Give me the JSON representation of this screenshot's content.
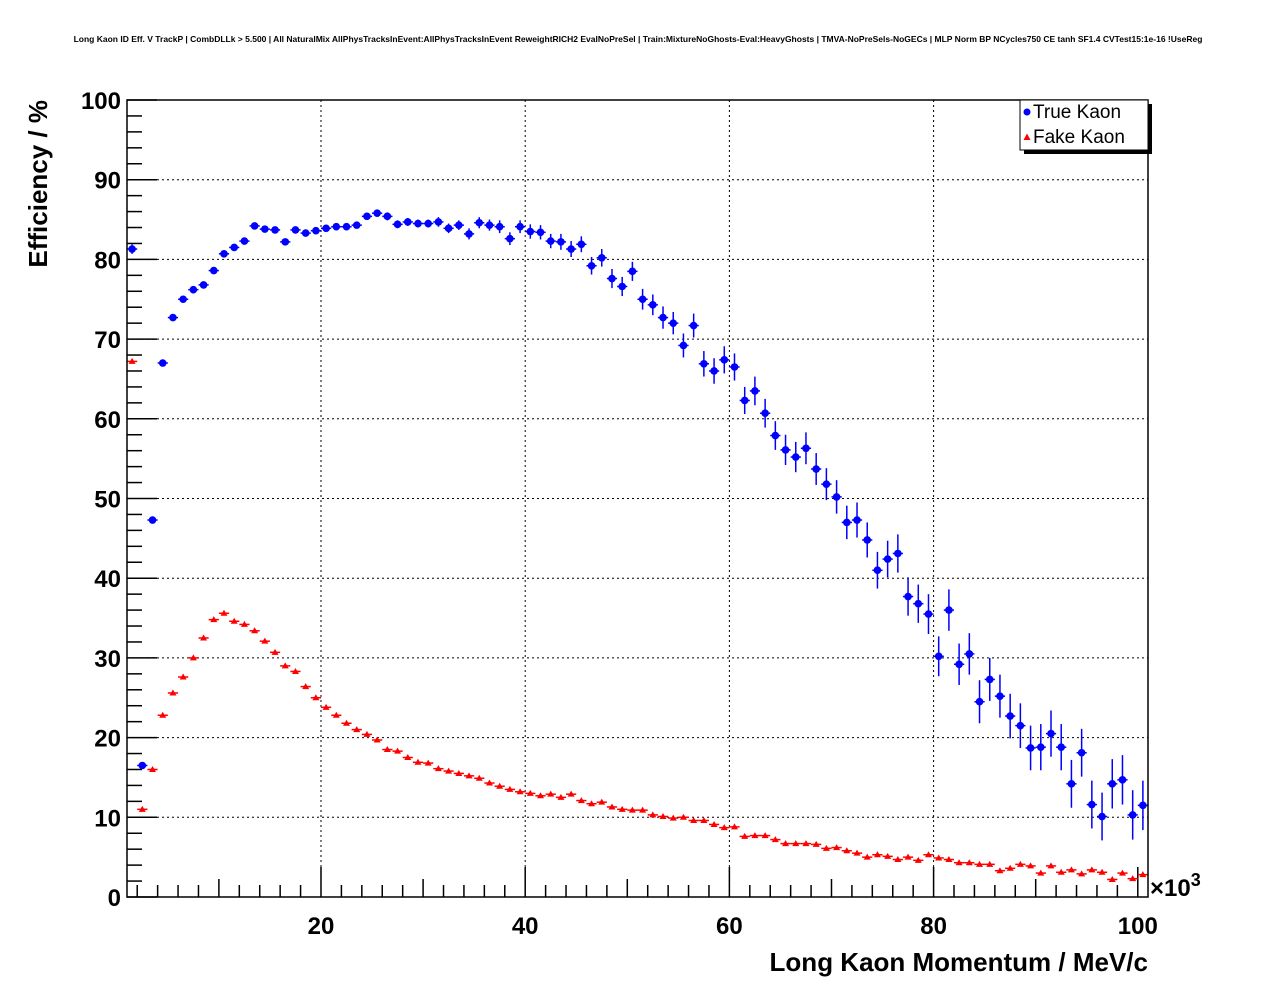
{
  "chart_data": {
    "type": "scatter",
    "title": "Long Kaon ID Eff. V TrackP | CombDLLk > 5.500 | All NaturalMix AllPhysTracksInEvent:AllPhysTracksInEvent ReweightRICH2 EvalNoPreSel | Train:MixtureNoGhosts-Eval:HeavyGhosts | TMVA-NoPreSels-NoGECs | MLP Norm BP NCycles750 CE tanh SF1.4 CVTest15:1e-16 !UseReg",
    "xlabel": "Long Kaon Momentum / MeV/c",
    "ylabel": "Efficiency / %",
    "x_multiplier": "×10",
    "x_multiplier_exp": "3",
    "xlim": [
      1,
      101
    ],
    "ylim": [
      0,
      100
    ],
    "xticks": [
      "20",
      "40",
      "60",
      "80",
      "100"
    ],
    "yticks": [
      "0",
      "10",
      "20",
      "30",
      "40",
      "50",
      "60",
      "70",
      "80",
      "90",
      "100"
    ],
    "grid": true,
    "legend_position": "top-right",
    "x_start": 1.5,
    "x_step": 1,
    "series": [
      {
        "name": "True Kaon",
        "color": "#0000ff",
        "marker": "circle",
        "values": [
          81.3,
          16.5,
          47.3,
          67,
          72.7,
          75,
          76.2,
          76.8,
          78.6,
          80.7,
          81.5,
          82.3,
          84.2,
          83.8,
          83.7,
          82.2,
          83.7,
          83.3,
          83.6,
          83.9,
          84.1,
          84.1,
          84.3,
          85.4,
          85.8,
          85.4,
          84.4,
          84.7,
          84.5,
          84.5,
          84.7,
          83.9,
          84.3,
          83.2,
          84.6,
          84.3,
          84.1,
          82.6,
          84.1,
          83.5,
          83.4,
          82.3,
          82.2,
          81.3,
          81.9,
          79.2,
          80.2,
          77.6,
          76.6,
          78.5,
          75,
          74.3,
          72.7,
          72,
          69.2,
          71.7,
          66.9,
          66,
          67.4,
          66.5,
          62.3,
          63.5,
          60.7,
          57.9,
          56.1,
          55.2,
          56.3,
          53.7,
          51.8,
          50.2,
          47,
          47.3,
          44.8,
          41,
          42.4,
          43.1,
          37.7,
          36.8,
          35.5,
          30.2,
          36,
          29.2,
          30.5,
          24.5,
          27.3,
          25.2,
          22.7,
          21.5,
          18.7,
          18.8,
          20.5,
          18.8,
          14.2,
          18.1,
          11.6,
          10.1,
          14.2,
          14.7,
          10.3,
          11.5
        ],
        "errors": [
          0.6,
          0.4,
          0.3,
          0.3,
          0.3,
          0.3,
          0.3,
          0.3,
          0.3,
          0.3,
          0.3,
          0.3,
          0.3,
          0.3,
          0.3,
          0.3,
          0.3,
          0.4,
          0.4,
          0.4,
          0.4,
          0.4,
          0.4,
          0.4,
          0.4,
          0.5,
          0.5,
          0.5,
          0.5,
          0.5,
          0.6,
          0.6,
          0.6,
          0.7,
          0.7,
          0.7,
          0.8,
          0.8,
          0.8,
          0.9,
          0.9,
          0.9,
          1,
          1,
          1,
          1.1,
          1.1,
          1.2,
          1.2,
          1.2,
          1.3,
          1.3,
          1.4,
          1.4,
          1.5,
          1.5,
          1.6,
          1.6,
          1.7,
          1.7,
          1.7,
          1.8,
          1.8,
          1.8,
          1.9,
          1.9,
          2,
          2,
          2,
          2.1,
          2.1,
          2.2,
          2.2,
          2.3,
          2.3,
          2.4,
          2.4,
          2.4,
          2.5,
          2.5,
          2.6,
          2.6,
          2.6,
          2.7,
          2.7,
          2.7,
          2.8,
          2.8,
          2.8,
          2.9,
          2.9,
          2.9,
          3,
          3,
          3,
          3,
          3.1,
          3.1,
          3.1,
          3.1
        ]
      },
      {
        "name": "Fake Kaon",
        "color": "#ff0000",
        "marker": "triangle",
        "values": [
          67.2,
          11,
          16,
          22.8,
          25.6,
          27.6,
          30,
          32.5,
          34.8,
          35.6,
          34.6,
          34.2,
          33.4,
          32.1,
          30.7,
          29,
          28.3,
          26.4,
          25,
          23.8,
          22.8,
          21.8,
          21,
          20.4,
          19.7,
          18.5,
          18.3,
          17.5,
          16.9,
          16.8,
          16.1,
          15.8,
          15.5,
          15.2,
          14.9,
          14.3,
          13.9,
          13.5,
          13.2,
          13,
          12.7,
          12.9,
          12.5,
          12.9,
          12.1,
          11.7,
          11.9,
          11.3,
          11,
          10.9,
          10.9,
          10.3,
          10.1,
          9.9,
          10,
          9.6,
          9.6,
          9.1,
          8.7,
          8.8,
          7.6,
          7.7,
          7.7,
          7.2,
          6.7,
          6.7,
          6.7,
          6.6,
          6.1,
          6.2,
          5.8,
          5.5,
          5,
          5.3,
          5.1,
          4.7,
          5,
          4.6,
          5.3,
          4.9,
          4.7,
          4.3,
          4.3,
          4.1,
          4.1,
          3.3,
          3.6,
          4.1,
          3.9,
          3,
          3.9,
          3.1,
          3.4,
          2.9,
          3.4,
          3.1,
          2.2,
          3,
          2.3,
          2.8
        ]
      }
    ]
  }
}
